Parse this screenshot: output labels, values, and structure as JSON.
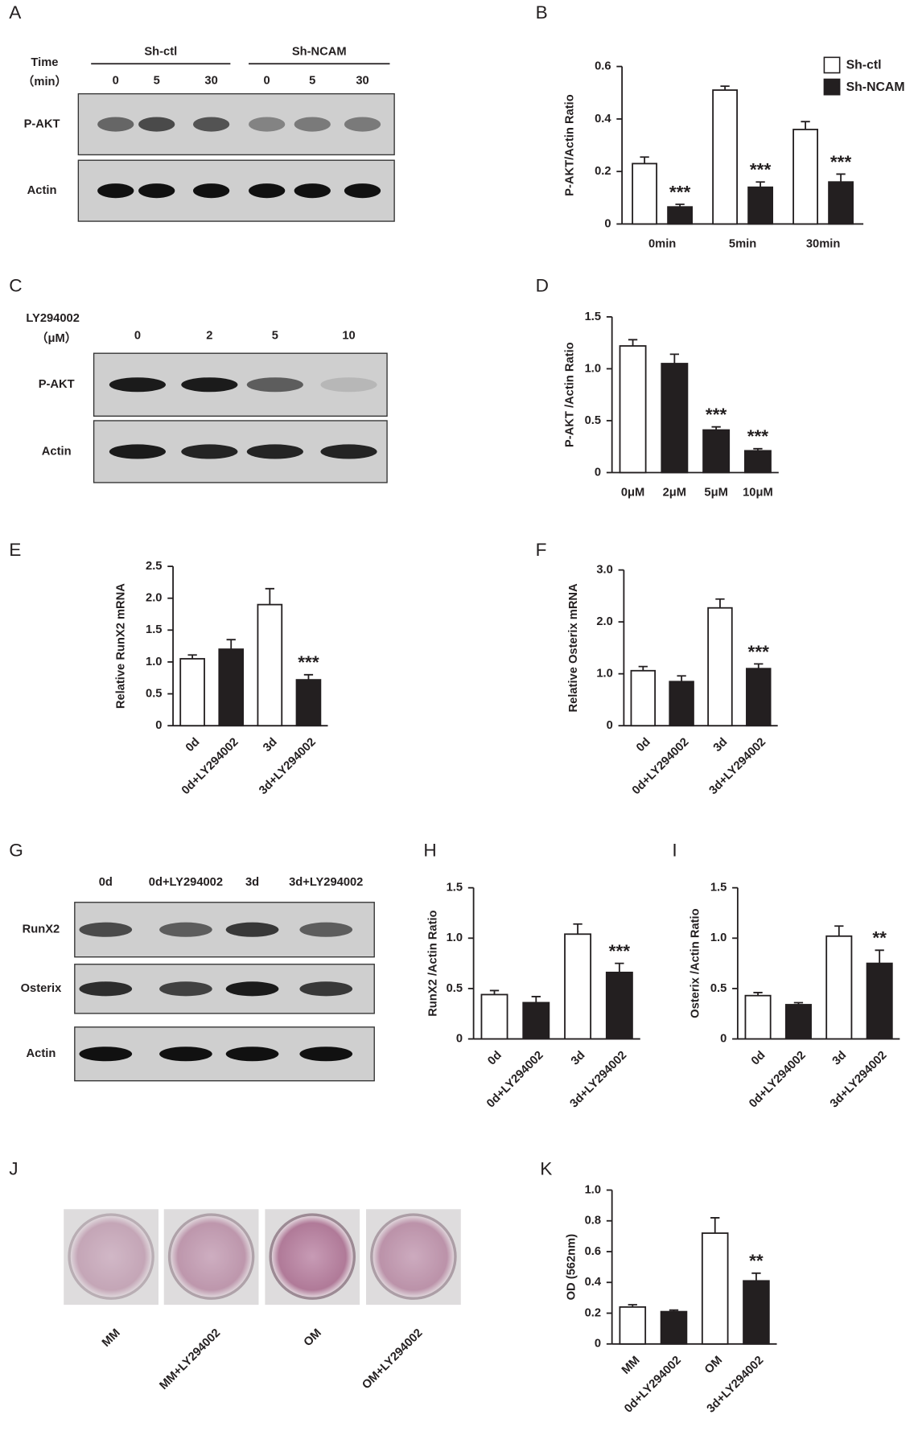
{
  "chart_data": [
    {
      "type": "bar",
      "panel": "B",
      "y_label": "P-AKT/Actin Ratio",
      "categories": [
        "0min",
        "5min",
        "30min"
      ],
      "series": [
        {
          "name": "Sh-ctl",
          "color": "#ffffff",
          "values": [
            0.23,
            0.51,
            0.36
          ],
          "errors": [
            0.025,
            0.015,
            0.03
          ]
        },
        {
          "name": "Sh-NCAM",
          "color": "#231f20",
          "values": [
            0.065,
            0.14,
            0.16
          ],
          "errors": [
            0.01,
            0.02,
            0.03
          ],
          "significance": [
            "***",
            "***",
            "***"
          ]
        }
      ],
      "ylim": [
        0,
        0.6
      ],
      "yticks": [
        0,
        0.2,
        0.4,
        0.6
      ],
      "legend": "top-right"
    },
    {
      "type": "bar",
      "panel": "D",
      "y_label": "P-AKT /Actin Ratio",
      "categories": [
        "0μM",
        "2μM",
        "5μM",
        "10μM"
      ],
      "values": [
        1.22,
        1.05,
        0.41,
        0.21
      ],
      "errors": [
        0.06,
        0.09,
        0.03,
        0.02
      ],
      "colors": [
        "#ffffff",
        "#231f20",
        "#231f20",
        "#231f20"
      ],
      "significance": [
        null,
        null,
        "***",
        "***"
      ],
      "ylim": [
        0,
        1.5
      ],
      "yticks": [
        0,
        0.5,
        {
          "value": 1,
          "label": "1.0"
        },
        1.5
      ]
    },
    {
      "type": "bar",
      "panel": "E",
      "y_label": "Relative RunX2  mRNA",
      "categories": [
        "0d",
        "0d+LY294002",
        "3d",
        "3d+LY294002"
      ],
      "values": [
        1.05,
        1.2,
        1.9,
        0.72
      ],
      "errors": [
        0.06,
        0.15,
        0.25,
        0.08
      ],
      "colors": [
        "#ffffff",
        "#231f20",
        "#ffffff",
        "#231f20"
      ],
      "significance": [
        null,
        null,
        null,
        "***"
      ],
      "ylim": [
        0,
        2.5
      ],
      "yticks": [
        0,
        0.5,
        {
          "value": 1,
          "label": "1.0"
        },
        1.5,
        {
          "value": 2,
          "label": "2.0"
        },
        2.5
      ]
    },
    {
      "type": "bar",
      "panel": "F",
      "y_label": "Relative Osterix  mRNA",
      "categories": [
        "0d",
        "0d+LY294002",
        "3d",
        "3d+LY294002"
      ],
      "values": [
        1.06,
        0.85,
        2.27,
        1.1
      ],
      "errors": [
        0.08,
        0.11,
        0.17,
        0.09
      ],
      "colors": [
        "#ffffff",
        "#231f20",
        "#ffffff",
        "#231f20"
      ],
      "significance": [
        null,
        null,
        null,
        "***"
      ],
      "ylim": [
        0,
        3
      ],
      "yticks": [
        0,
        {
          "value": 1,
          "label": "1.0"
        },
        {
          "value": 2,
          "label": "2.0"
        },
        {
          "value": 3,
          "label": "3.0"
        }
      ]
    },
    {
      "type": "bar",
      "panel": "H",
      "y_label": "RunX2 /Actin Ratio",
      "categories": [
        "0d",
        "0d+LY294002",
        "3d",
        "3d+LY294002"
      ],
      "values": [
        0.44,
        0.36,
        1.04,
        0.66
      ],
      "errors": [
        0.04,
        0.06,
        0.1,
        0.09
      ],
      "colors": [
        "#ffffff",
        "#231f20",
        "#ffffff",
        "#231f20"
      ],
      "significance": [
        null,
        null,
        null,
        "***"
      ],
      "ylim": [
        0,
        1.5
      ],
      "yticks": [
        0,
        0.5,
        {
          "value": 1,
          "label": "1.0"
        },
        1.5
      ]
    },
    {
      "type": "bar",
      "panel": "I",
      "y_label": "Osterix /Actin Ratio",
      "categories": [
        "0d",
        "0d+LY294002",
        "3d",
        "3d+LY294002"
      ],
      "values": [
        0.43,
        0.34,
        1.02,
        0.75
      ],
      "errors": [
        0.03,
        0.02,
        0.1,
        0.13
      ],
      "colors": [
        "#ffffff",
        "#231f20",
        "#ffffff",
        "#231f20"
      ],
      "significance": [
        null,
        null,
        null,
        "**"
      ],
      "ylim": [
        0,
        1.5
      ],
      "yticks": [
        0,
        0.5,
        {
          "value": 1,
          "label": "1.0"
        },
        1.5
      ]
    },
    {
      "type": "bar",
      "panel": "K",
      "y_label": "OD (562nm)",
      "categories": [
        "MM",
        "0d+LY294002",
        "OM",
        "3d+LY294002"
      ],
      "values": [
        0.24,
        0.21,
        0.72,
        0.41
      ],
      "errors": [
        0.015,
        0.01,
        0.1,
        0.05
      ],
      "colors": [
        "#ffffff",
        "#231f20",
        "#ffffff",
        "#231f20"
      ],
      "significance": [
        null,
        null,
        null,
        "**"
      ],
      "ylim": [
        0,
        1
      ],
      "yticks": [
        0,
        0.2,
        0.4,
        0.6,
        0.8,
        {
          "value": 1,
          "label": "1.0"
        }
      ]
    }
  ],
  "blots": [
    {
      "panel": "A",
      "title": "Time",
      "unit": "（min）",
      "groups": [
        "Sh-ctl",
        "Sh-NCAM"
      ],
      "lanes": [
        "0",
        "5",
        "30",
        "0",
        "5",
        "30"
      ],
      "rows": [
        "P-AKT",
        "Actin"
      ]
    },
    {
      "panel": "C",
      "title": "LY294002",
      "unit": "（μM）",
      "lanes": [
        "0",
        "2",
        "5",
        "10"
      ],
      "rows": [
        "P-AKT",
        "Actin"
      ]
    },
    {
      "panel": "G",
      "lanes": [
        "0d",
        "0d+LY294002",
        "3d",
        "3d+LY294002"
      ],
      "rows": [
        "RunX2",
        "Osterix",
        "Actin"
      ]
    }
  ],
  "stain": {
    "panel": "J",
    "lanes": [
      "MM",
      "MM+LY294002",
      "OM",
      "OM+LY294002"
    ]
  }
}
